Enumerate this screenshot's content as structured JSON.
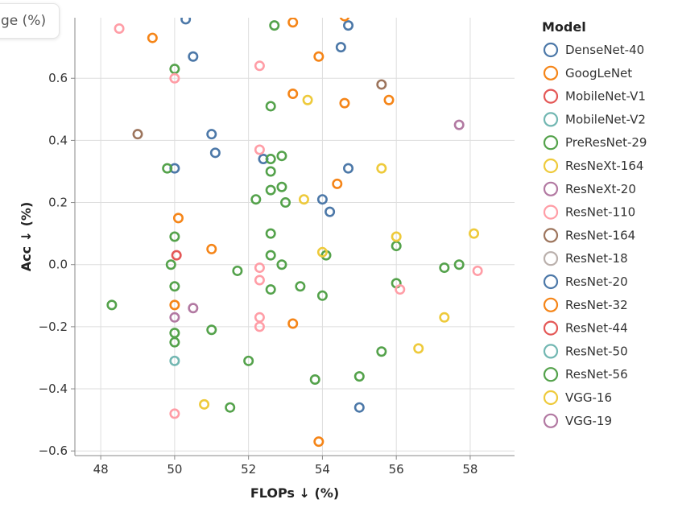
{
  "tooltip": {
    "text": "ge (%)"
  },
  "chart_data": {
    "type": "scatter",
    "xlabel": "FLOPs ↓ (%)",
    "ylabel": "Acc ↓ (%)",
    "xlim": [
      47.3,
      59.2
    ],
    "ylim": [
      -0.615,
      0.795
    ],
    "x_ticks": [
      48,
      50,
      52,
      54,
      56,
      58
    ],
    "y_ticks": [
      -0.6,
      -0.4,
      -0.2,
      0.0,
      0.2,
      0.4,
      0.6
    ],
    "y_tick_labels": [
      "−0.6",
      "−0.4",
      "−0.2",
      "0.0",
      "0.2",
      "0.4",
      "0.6"
    ],
    "grid": true,
    "legend": {
      "title": "Model",
      "placement": "right",
      "entries": [
        {
          "name": "DenseNet-40",
          "color": "#4c78a8"
        },
        {
          "name": "GoogLeNet",
          "color": "#f58518"
        },
        {
          "name": "MobileNet-V1",
          "color": "#e45756"
        },
        {
          "name": "MobileNet-V2",
          "color": "#72b7b2"
        },
        {
          "name": "PreResNet-29",
          "color": "#54a24b"
        },
        {
          "name": "ResNeXt-164",
          "color": "#eeca3b"
        },
        {
          "name": "ResNeXt-20",
          "color": "#b279a2"
        },
        {
          "name": "ResNet-110",
          "color": "#ff9da6"
        },
        {
          "name": "ResNet-164",
          "color": "#9d755d"
        },
        {
          "name": "ResNet-18",
          "color": "#bab0ac"
        },
        {
          "name": "ResNet-20",
          "color": "#4c78a8"
        },
        {
          "name": "ResNet-32",
          "color": "#f58518"
        },
        {
          "name": "ResNet-44",
          "color": "#e45756"
        },
        {
          "name": "ResNet-50",
          "color": "#72b7b2"
        },
        {
          "name": "ResNet-56",
          "color": "#54a24b"
        },
        {
          "name": "VGG-16",
          "color": "#eeca3b"
        },
        {
          "name": "VGG-19",
          "color": "#b279a2"
        }
      ]
    },
    "points": [
      {
        "x": 50.3,
        "y": 0.79,
        "color": "#4c78a8"
      },
      {
        "x": 54.7,
        "y": 0.77,
        "color": "#4c78a8"
      },
      {
        "x": 54.5,
        "y": 0.7,
        "color": "#4c78a8"
      },
      {
        "x": 50.5,
        "y": 0.67,
        "color": "#4c78a8"
      },
      {
        "x": 51.0,
        "y": 0.42,
        "color": "#4c78a8"
      },
      {
        "x": 51.1,
        "y": 0.36,
        "color": "#4c78a8"
      },
      {
        "x": 52.4,
        "y": 0.34,
        "color": "#4c78a8"
      },
      {
        "x": 50.0,
        "y": 0.31,
        "color": "#4c78a8"
      },
      {
        "x": 54.7,
        "y": 0.31,
        "color": "#4c78a8"
      },
      {
        "x": 54.0,
        "y": 0.21,
        "color": "#4c78a8"
      },
      {
        "x": 54.2,
        "y": 0.17,
        "color": "#4c78a8"
      },
      {
        "x": 55.0,
        "y": -0.46,
        "color": "#4c78a8"
      },
      {
        "x": 53.2,
        "y": 0.78,
        "color": "#f58518"
      },
      {
        "x": 54.6,
        "y": 0.8,
        "color": "#f58518"
      },
      {
        "x": 49.4,
        "y": 0.73,
        "color": "#f58518"
      },
      {
        "x": 53.9,
        "y": 0.67,
        "color": "#f58518"
      },
      {
        "x": 53.2,
        "y": 0.55,
        "color": "#f58518"
      },
      {
        "x": 54.6,
        "y": 0.52,
        "color": "#f58518"
      },
      {
        "x": 55.8,
        "y": 0.53,
        "color": "#f58518"
      },
      {
        "x": 54.4,
        "y": 0.26,
        "color": "#f58518"
      },
      {
        "x": 50.1,
        "y": 0.15,
        "color": "#f58518"
      },
      {
        "x": 51.0,
        "y": 0.05,
        "color": "#f58518"
      },
      {
        "x": 50.0,
        "y": -0.13,
        "color": "#f58518"
      },
      {
        "x": 53.2,
        "y": -0.19,
        "color": "#f58518"
      },
      {
        "x": 53.9,
        "y": -0.57,
        "color": "#f58518"
      },
      {
        "x": 50.05,
        "y": 0.03,
        "color": "#e45756"
      },
      {
        "x": 50.0,
        "y": -0.31,
        "color": "#72b7b2"
      },
      {
        "x": 52.7,
        "y": 0.77,
        "color": "#54a24b"
      },
      {
        "x": 50.0,
        "y": 0.63,
        "color": "#54a24b"
      },
      {
        "x": 52.6,
        "y": 0.51,
        "color": "#54a24b"
      },
      {
        "x": 52.9,
        "y": 0.35,
        "color": "#54a24b"
      },
      {
        "x": 52.6,
        "y": 0.34,
        "color": "#54a24b"
      },
      {
        "x": 49.8,
        "y": 0.31,
        "color": "#54a24b"
      },
      {
        "x": 52.6,
        "y": 0.3,
        "color": "#54a24b"
      },
      {
        "x": 52.9,
        "y": 0.25,
        "color": "#54a24b"
      },
      {
        "x": 52.6,
        "y": 0.24,
        "color": "#54a24b"
      },
      {
        "x": 52.2,
        "y": 0.21,
        "color": "#54a24b"
      },
      {
        "x": 53.0,
        "y": 0.2,
        "color": "#54a24b"
      },
      {
        "x": 52.6,
        "y": 0.1,
        "color": "#54a24b"
      },
      {
        "x": 50.0,
        "y": 0.09,
        "color": "#54a24b"
      },
      {
        "x": 56.0,
        "y": 0.06,
        "color": "#54a24b"
      },
      {
        "x": 52.6,
        "y": 0.03,
        "color": "#54a24b"
      },
      {
        "x": 54.1,
        "y": 0.03,
        "color": "#54a24b"
      },
      {
        "x": 49.9,
        "y": 0.0,
        "color": "#54a24b"
      },
      {
        "x": 52.9,
        "y": 0.0,
        "color": "#54a24b"
      },
      {
        "x": 57.7,
        "y": 0.0,
        "color": "#54a24b"
      },
      {
        "x": 57.3,
        "y": -0.01,
        "color": "#54a24b"
      },
      {
        "x": 51.7,
        "y": -0.02,
        "color": "#54a24b"
      },
      {
        "x": 56.0,
        "y": -0.06,
        "color": "#54a24b"
      },
      {
        "x": 50.0,
        "y": -0.07,
        "color": "#54a24b"
      },
      {
        "x": 53.4,
        "y": -0.07,
        "color": "#54a24b"
      },
      {
        "x": 52.6,
        "y": -0.08,
        "color": "#54a24b"
      },
      {
        "x": 54.0,
        "y": -0.1,
        "color": "#54a24b"
      },
      {
        "x": 48.3,
        "y": -0.13,
        "color": "#54a24b"
      },
      {
        "x": 51.0,
        "y": -0.21,
        "color": "#54a24b"
      },
      {
        "x": 50.0,
        "y": -0.22,
        "color": "#54a24b"
      },
      {
        "x": 50.0,
        "y": -0.25,
        "color": "#54a24b"
      },
      {
        "x": 55.6,
        "y": -0.28,
        "color": "#54a24b"
      },
      {
        "x": 52.0,
        "y": -0.31,
        "color": "#54a24b"
      },
      {
        "x": 55.0,
        "y": -0.36,
        "color": "#54a24b"
      },
      {
        "x": 53.8,
        "y": -0.37,
        "color": "#54a24b"
      },
      {
        "x": 51.5,
        "y": -0.46,
        "color": "#54a24b"
      },
      {
        "x": 53.6,
        "y": 0.53,
        "color": "#eeca3b"
      },
      {
        "x": 55.6,
        "y": 0.31,
        "color": "#eeca3b"
      },
      {
        "x": 53.5,
        "y": 0.21,
        "color": "#eeca3b"
      },
      {
        "x": 58.1,
        "y": 0.1,
        "color": "#eeca3b"
      },
      {
        "x": 56.0,
        "y": 0.09,
        "color": "#eeca3b"
      },
      {
        "x": 54.0,
        "y": 0.04,
        "color": "#eeca3b"
      },
      {
        "x": 57.3,
        "y": -0.17,
        "color": "#eeca3b"
      },
      {
        "x": 56.6,
        "y": -0.27,
        "color": "#eeca3b"
      },
      {
        "x": 50.8,
        "y": -0.45,
        "color": "#eeca3b"
      },
      {
        "x": 57.7,
        "y": 0.45,
        "color": "#b279a2"
      },
      {
        "x": 50.5,
        "y": -0.14,
        "color": "#b279a2"
      },
      {
        "x": 50.0,
        "y": -0.17,
        "color": "#b279a2"
      },
      {
        "x": 48.5,
        "y": 0.76,
        "color": "#ff9da6"
      },
      {
        "x": 52.3,
        "y": 0.64,
        "color": "#ff9da6"
      },
      {
        "x": 50.0,
        "y": 0.6,
        "color": "#ff9da6"
      },
      {
        "x": 52.3,
        "y": 0.37,
        "color": "#ff9da6"
      },
      {
        "x": 52.3,
        "y": -0.01,
        "color": "#ff9da6"
      },
      {
        "x": 58.2,
        "y": -0.02,
        "color": "#ff9da6"
      },
      {
        "x": 52.3,
        "y": -0.05,
        "color": "#ff9da6"
      },
      {
        "x": 56.1,
        "y": -0.08,
        "color": "#ff9da6"
      },
      {
        "x": 52.3,
        "y": -0.17,
        "color": "#ff9da6"
      },
      {
        "x": 52.3,
        "y": -0.2,
        "color": "#ff9da6"
      },
      {
        "x": 50.0,
        "y": -0.48,
        "color": "#ff9da6"
      },
      {
        "x": 55.6,
        "y": 0.58,
        "color": "#9d755d"
      },
      {
        "x": 49.0,
        "y": 0.42,
        "color": "#9d755d"
      }
    ]
  }
}
